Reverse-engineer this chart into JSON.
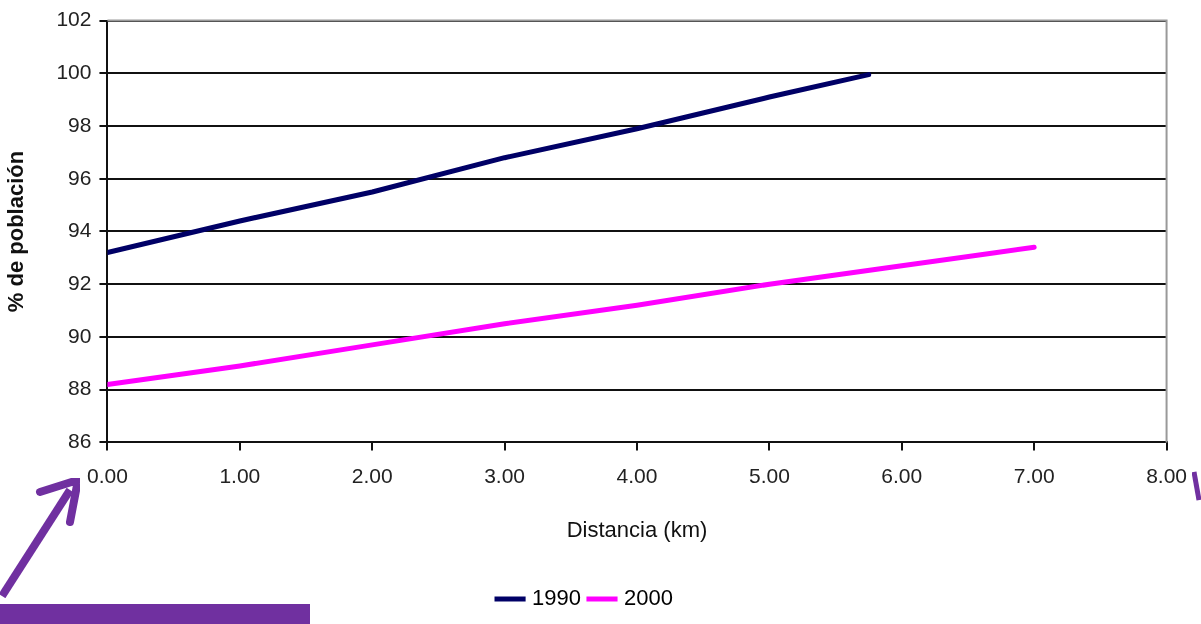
{
  "chart_data": {
    "type": "line",
    "xlabel": "Distancia (km)",
    "ylabel": "% de población",
    "xlim": [
      0,
      8
    ],
    "xticks": [
      {
        "value": 0,
        "label": "0.00"
      },
      {
        "value": 1,
        "label": "1.00"
      },
      {
        "value": 2,
        "label": "2.00"
      },
      {
        "value": 3,
        "label": "3.00"
      },
      {
        "value": 4,
        "label": "4.00"
      },
      {
        "value": 5,
        "label": "5.00"
      },
      {
        "value": 6,
        "label": "6.00"
      },
      {
        "value": 7,
        "label": "7.00"
      },
      {
        "value": 8,
        "label": "8.00"
      }
    ],
    "ylim": [
      86,
      102
    ],
    "yticks": [
      86,
      88,
      90,
      92,
      94,
      96,
      98,
      100,
      102
    ],
    "grid": "y",
    "legend": "bottom",
    "marker": "none",
    "line_style": "solid",
    "series": [
      {
        "name": "1990",
        "color": "#000066",
        "x": [
          0,
          1,
          2,
          3,
          4,
          5,
          5.75
        ],
        "values": [
          93.2,
          94.4,
          95.5,
          96.8,
          97.9,
          99.1,
          99.95
        ]
      },
      {
        "name": "2000",
        "color": "#ff00ff",
        "x": [
          0,
          1,
          2,
          3,
          4,
          5,
          6,
          7
        ],
        "values": [
          88.2,
          88.9,
          89.7,
          90.5,
          91.2,
          92.0,
          92.7,
          93.4
        ]
      }
    ]
  }
}
